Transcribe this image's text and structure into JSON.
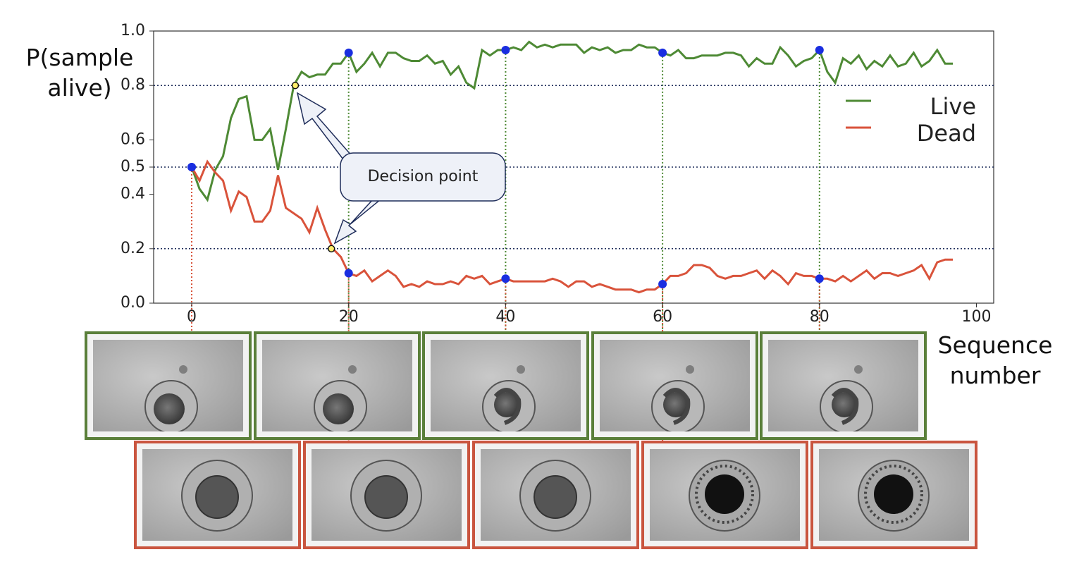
{
  "chart_data": {
    "type": "line",
    "ylabel": "P(sample alive)",
    "xlabel": "Sequence number",
    "legend": "upper right",
    "xlim": [
      -4.85,
      102.2
    ],
    "ylim": [
      0,
      1
    ],
    "xticks": [
      0,
      20,
      40,
      60,
      80,
      100
    ],
    "yticks": [
      {
        "value": 0,
        "label": "0.0"
      },
      0.2,
      0.4,
      0.5,
      0.6,
      0.8,
      {
        "value": 1,
        "label": "1.0"
      }
    ],
    "hlines": [
      0.8,
      0.5,
      0.2
    ],
    "highlight_x": [
      0,
      20,
      40,
      60,
      80
    ],
    "highlight_color": "#1a2ee0",
    "decision_points": [
      {
        "x": 13.2,
        "y": 0.8
      },
      {
        "x": 17.8,
        "y": 0.2
      }
    ],
    "annotation": "Decision point",
    "x": [
      0,
      1,
      2,
      3,
      4,
      5,
      6,
      7,
      8,
      9,
      10,
      11,
      12,
      13,
      14,
      15,
      16,
      17,
      18,
      19,
      20,
      21,
      22,
      23,
      24,
      25,
      26,
      27,
      28,
      29,
      30,
      31,
      32,
      33,
      34,
      35,
      36,
      37,
      38,
      39,
      40,
      41,
      42,
      43,
      44,
      45,
      46,
      47,
      48,
      49,
      50,
      51,
      52,
      53,
      54,
      55,
      56,
      57,
      58,
      59,
      60,
      61,
      62,
      63,
      64,
      65,
      66,
      67,
      68,
      69,
      70,
      71,
      72,
      73,
      74,
      75,
      76,
      77,
      78,
      79,
      80,
      81,
      82,
      83,
      84,
      85,
      86,
      87,
      88,
      89,
      90,
      91,
      92,
      93,
      94,
      95,
      96,
      97
    ],
    "series": [
      {
        "name": "Live",
        "color": "#4e8a35",
        "values": [
          0.5,
          0.42,
          0.38,
          0.49,
          0.54,
          0.68,
          0.75,
          0.76,
          0.6,
          0.6,
          0.64,
          0.49,
          0.64,
          0.8,
          0.85,
          0.83,
          0.84,
          0.84,
          0.88,
          0.88,
          0.92,
          0.85,
          0.88,
          0.92,
          0.87,
          0.92,
          0.92,
          0.9,
          0.89,
          0.89,
          0.91,
          0.88,
          0.89,
          0.84,
          0.87,
          0.81,
          0.79,
          0.93,
          0.91,
          0.93,
          0.93,
          0.94,
          0.93,
          0.96,
          0.94,
          0.95,
          0.94,
          0.95,
          0.95,
          0.95,
          0.92,
          0.94,
          0.93,
          0.94,
          0.92,
          0.93,
          0.93,
          0.95,
          0.94,
          0.94,
          0.92,
          0.91,
          0.93,
          0.9,
          0.9,
          0.91,
          0.91,
          0.91,
          0.92,
          0.92,
          0.91,
          0.87,
          0.9,
          0.88,
          0.88,
          0.94,
          0.91,
          0.87,
          0.89,
          0.9,
          0.93,
          0.85,
          0.81,
          0.9,
          0.88,
          0.91,
          0.86,
          0.89,
          0.87,
          0.91,
          0.87,
          0.88,
          0.92,
          0.87,
          0.89,
          0.93,
          0.88,
          0.88
        ]
      },
      {
        "name": "Dead",
        "color": "#d9533b",
        "values": [
          0.5,
          0.45,
          0.52,
          0.48,
          0.45,
          0.34,
          0.41,
          0.39,
          0.3,
          0.3,
          0.34,
          0.47,
          0.35,
          0.33,
          0.31,
          0.26,
          0.35,
          0.27,
          0.2,
          0.17,
          0.11,
          0.1,
          0.12,
          0.08,
          0.1,
          0.12,
          0.1,
          0.06,
          0.07,
          0.06,
          0.08,
          0.07,
          0.07,
          0.08,
          0.07,
          0.1,
          0.09,
          0.1,
          0.07,
          0.08,
          0.09,
          0.08,
          0.08,
          0.08,
          0.08,
          0.08,
          0.09,
          0.08,
          0.06,
          0.08,
          0.08,
          0.06,
          0.07,
          0.06,
          0.05,
          0.05,
          0.05,
          0.04,
          0.05,
          0.05,
          0.07,
          0.1,
          0.1,
          0.11,
          0.14,
          0.14,
          0.13,
          0.1,
          0.09,
          0.1,
          0.1,
          0.11,
          0.12,
          0.09,
          0.12,
          0.1,
          0.07,
          0.11,
          0.1,
          0.1,
          0.09,
          0.09,
          0.08,
          0.1,
          0.08,
          0.1,
          0.12,
          0.09,
          0.11,
          0.11,
          0.1,
          0.11,
          0.12,
          0.14,
          0.09,
          0.15,
          0.16,
          0.16
        ]
      }
    ]
  }
}
